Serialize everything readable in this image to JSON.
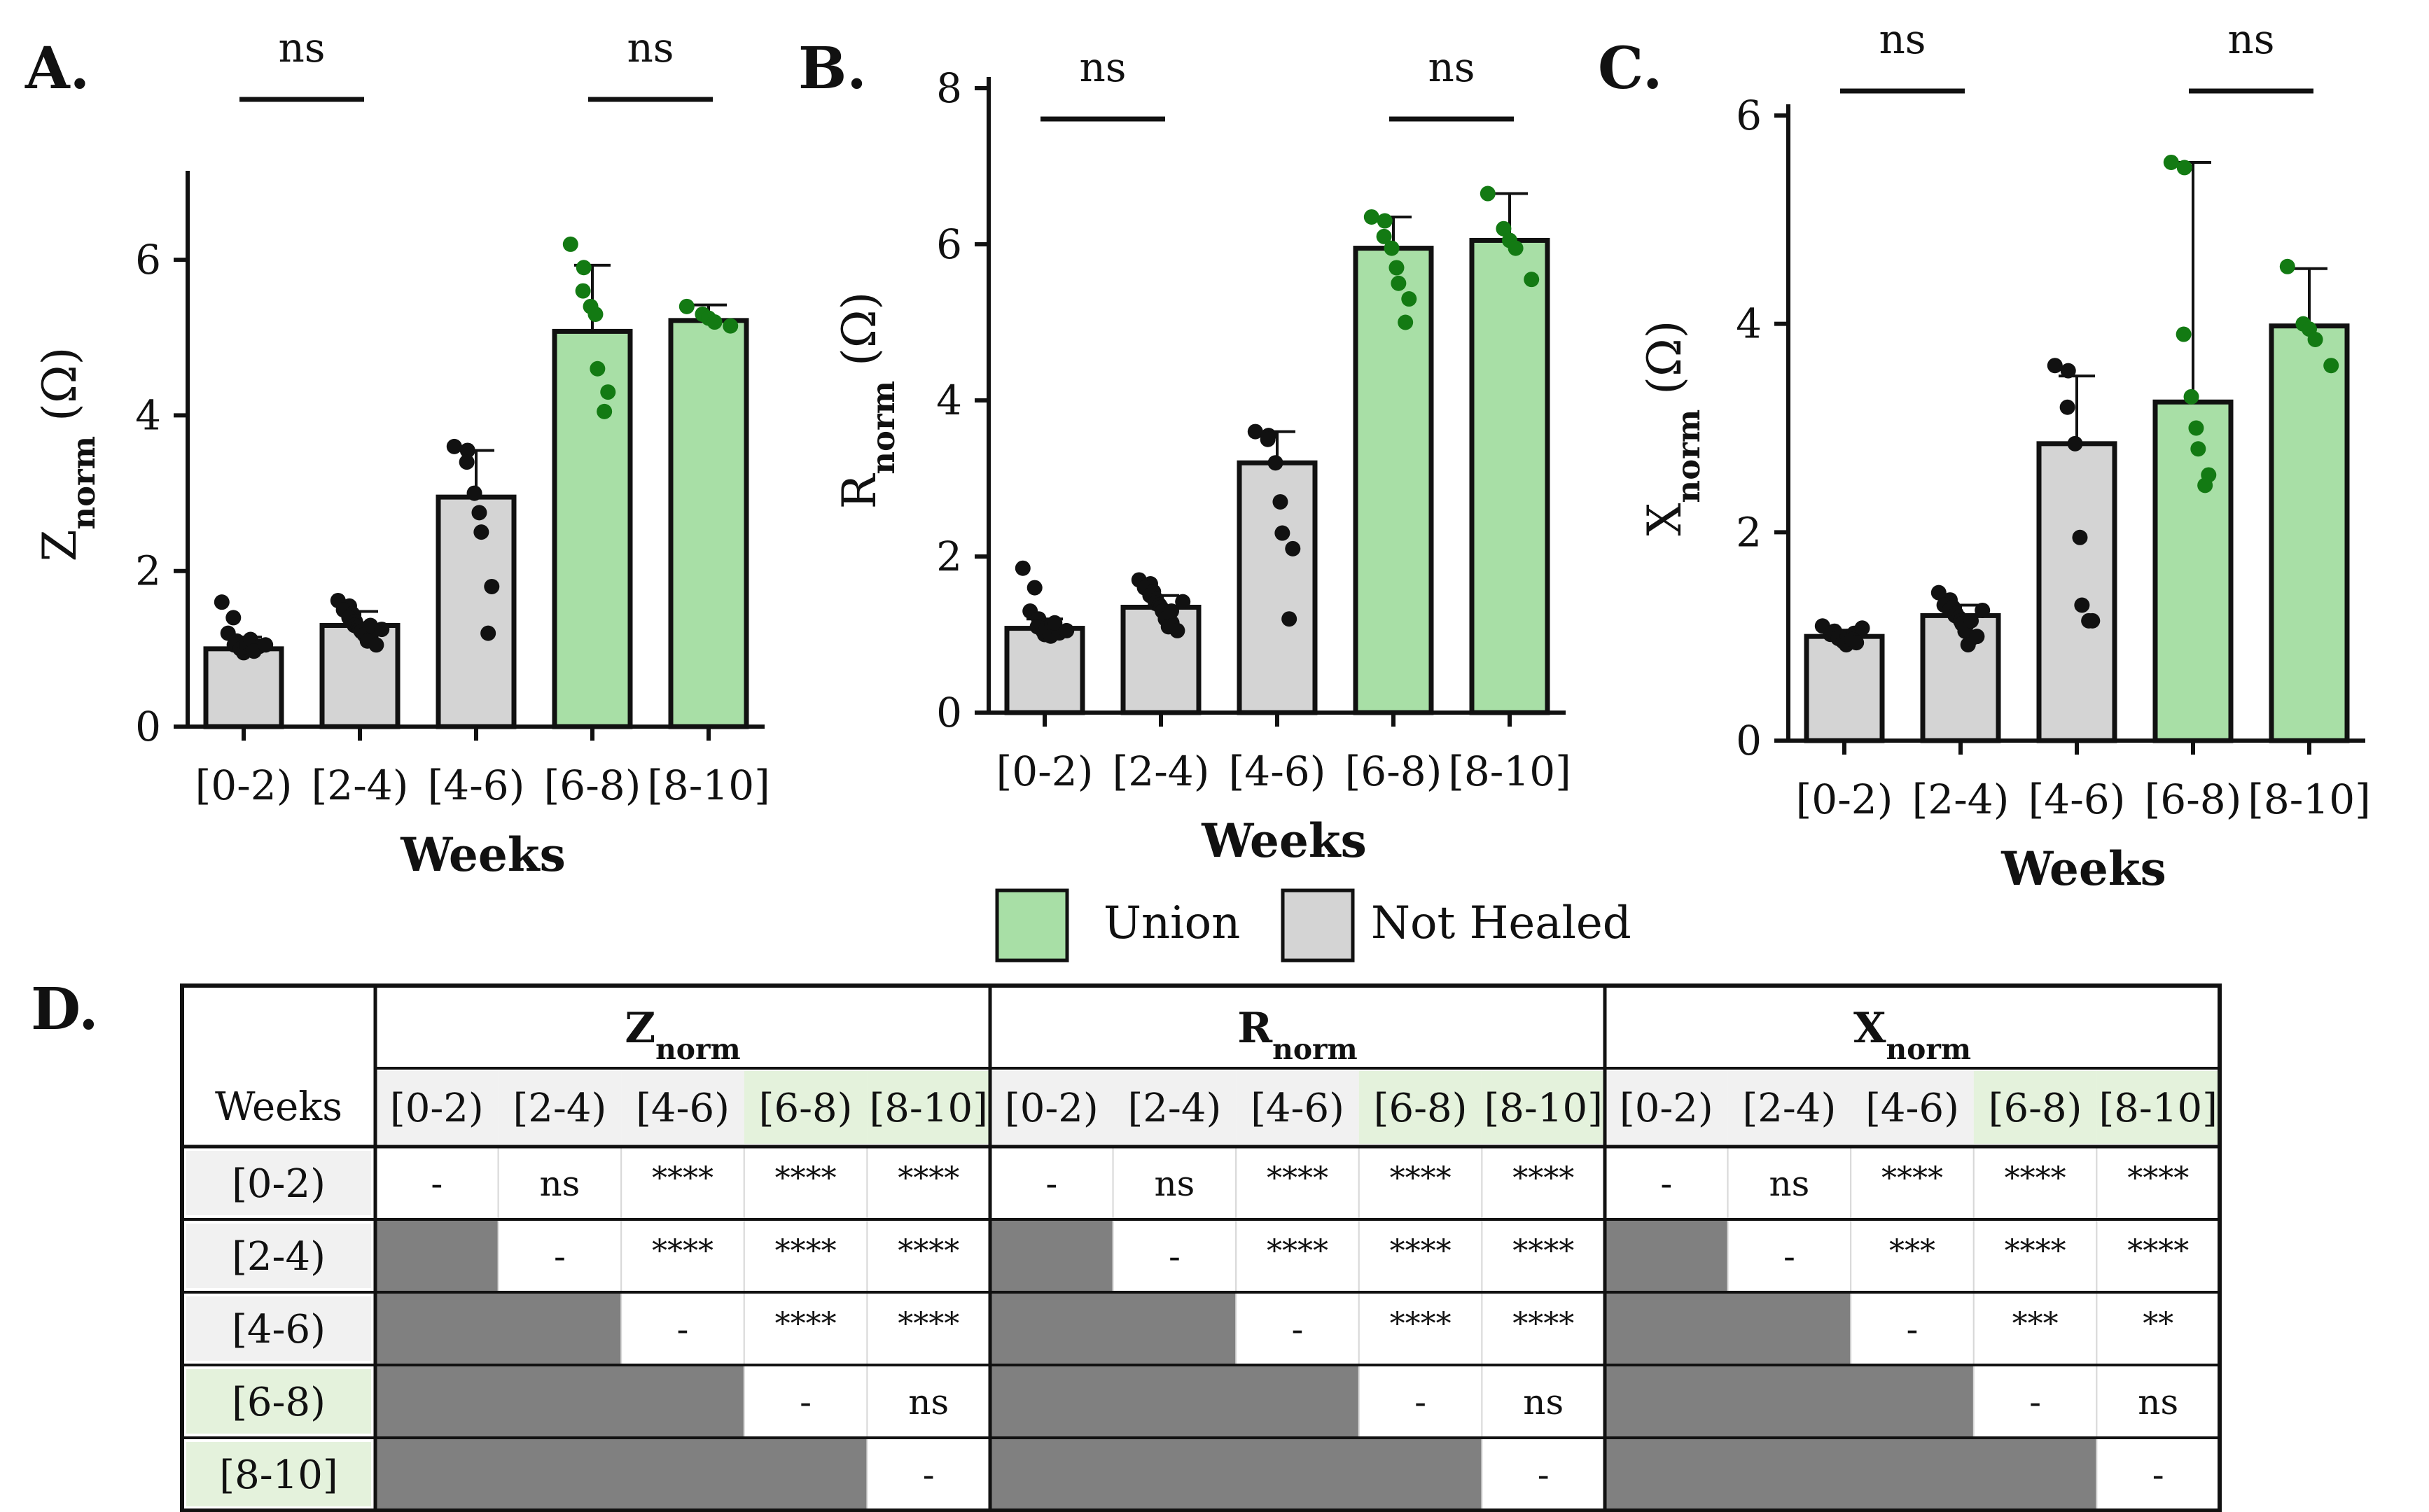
{
  "figure": {
    "categories": [
      "[0-2)",
      "[2-4)",
      "[4-6)",
      "[6-8)",
      "[8-10]"
    ],
    "colors": {
      "union": "#a8dfa6",
      "not_healed": "#d4d4d4",
      "point_union": "#137a13",
      "point_not_healed": "#111111",
      "shaded_cell": "#808080",
      "union_header_bg": "#e4f2dc",
      "row_header_bg": "#f1f1f1"
    },
    "legend": {
      "union_label": "Union",
      "not_healed_label": "Not Healed"
    },
    "table": {
      "panel_letter": "D.",
      "corner_label": "Weeks",
      "groups": [
        {
          "base": "Z",
          "sub": "norm"
        },
        {
          "base": "R",
          "sub": "norm"
        },
        {
          "base": "X",
          "sub": "norm"
        }
      ],
      "row_labels": [
        "[0-2)",
        "[2-4)",
        "[4-6)",
        "[6-8)",
        "[8-10]"
      ],
      "values": [
        [
          [
            "-",
            "ns",
            "****",
            "****",
            "****"
          ],
          [
            "",
            "-",
            "****",
            "****",
            "****"
          ],
          [
            "",
            "",
            "-",
            "****",
            "****"
          ],
          [
            "",
            "",
            "",
            "-",
            "ns"
          ],
          [
            "",
            "",
            "",
            "",
            "-"
          ]
        ],
        [
          [
            "-",
            "ns",
            "****",
            "****",
            "****"
          ],
          [
            "",
            "-",
            "****",
            "****",
            "****"
          ],
          [
            "",
            "",
            "-",
            "****",
            "****"
          ],
          [
            "",
            "",
            "",
            "-",
            "ns"
          ],
          [
            "",
            "",
            "",
            "",
            "-"
          ]
        ],
        [
          [
            "-",
            "ns",
            "****",
            "****",
            "****"
          ],
          [
            "",
            "-",
            "***",
            "****",
            "****"
          ],
          [
            "",
            "",
            "-",
            "***",
            "**"
          ],
          [
            "",
            "",
            "",
            "-",
            "ns"
          ],
          [
            "",
            "",
            "",
            "",
            "-"
          ]
        ]
      ]
    }
  },
  "chart_data": [
    {
      "type": "bar",
      "panel_letter": "A.",
      "categories": [
        "[0-2)",
        "[2-4)",
        "[4-6)",
        "[6-8)",
        "[8-10]"
      ],
      "values": [
        1.0,
        1.3,
        2.95,
        5.08,
        5.22
      ],
      "sd": [
        0.15,
        0.18,
        0.6,
        0.85,
        0.2
      ],
      "points": [
        [
          1.6,
          1.4,
          1.2,
          1.1,
          1.05,
          1.0,
          1.0,
          0.95,
          1.02,
          1.08,
          0.98,
          1.12,
          1.03,
          0.97,
          1.05
        ],
        [
          1.62,
          1.55,
          1.5,
          1.45,
          1.4,
          1.35,
          1.3,
          1.28,
          1.25,
          1.22,
          1.2,
          1.18,
          1.15,
          1.1,
          1.05,
          1.3,
          1.25
        ],
        [
          3.6,
          3.55,
          3.4,
          3.0,
          2.75,
          2.5,
          1.8,
          1.2
        ],
        [
          6.2,
          5.9,
          5.6,
          5.4,
          5.3,
          4.6,
          4.3,
          4.05
        ],
        [
          5.4,
          5.3,
          5.25,
          5.2,
          5.15
        ]
      ],
      "groups": [
        "not_healed",
        "not_healed",
        "not_healed",
        "union",
        "union"
      ],
      "ylim": [
        0,
        7
      ],
      "yticks": [
        0,
        2,
        4,
        6
      ],
      "ylabel": {
        "base": "Z",
        "sub": "norm",
        "unit": "(Ω)"
      },
      "xlabel": "Weeks",
      "comparisons": [
        {
          "from": "[0-2)",
          "to": "[2-4)",
          "label": "ns"
        },
        {
          "from": "[6-8)",
          "to": "[8-10]",
          "label": "ns"
        }
      ]
    },
    {
      "type": "bar",
      "panel_letter": "B.",
      "categories": [
        "[0-2)",
        "[2-4)",
        "[4-6)",
        "[6-8)",
        "[8-10]"
      ],
      "values": [
        1.08,
        1.35,
        3.2,
        5.95,
        6.05
      ],
      "sd": [
        0.12,
        0.15,
        0.4,
        0.4,
        0.6
      ],
      "points": [
        [
          1.85,
          1.6,
          1.3,
          1.2,
          1.1,
          1.05,
          1.0,
          1.08,
          1.12,
          0.98,
          1.02,
          1.15,
          1.05
        ],
        [
          1.7,
          1.65,
          1.6,
          1.55,
          1.5,
          1.45,
          1.4,
          1.38,
          1.35,
          1.3,
          1.25,
          1.2,
          1.15,
          1.1,
          1.05,
          1.3,
          1.42
        ],
        [
          3.6,
          3.55,
          3.5,
          3.2,
          2.7,
          2.3,
          2.1,
          1.2
        ],
        [
          6.35,
          6.3,
          6.1,
          5.95,
          5.7,
          5.5,
          5.3,
          5.0
        ],
        [
          6.65,
          6.2,
          6.05,
          5.95,
          5.55
        ]
      ],
      "groups": [
        "not_healed",
        "not_healed",
        "not_healed",
        "union",
        "union"
      ],
      "ylim": [
        0,
        8
      ],
      "yticks": [
        0,
        2,
        4,
        6,
        8
      ],
      "ylabel": {
        "base": "R",
        "sub": "norm",
        "unit": "(Ω)"
      },
      "xlabel": "Weeks",
      "comparisons": [
        {
          "from": "[0-2)",
          "to": "[2-4)",
          "label": "ns"
        },
        {
          "from": "[6-8)",
          "to": "[8-10]",
          "label": "ns"
        }
      ]
    },
    {
      "type": "bar",
      "panel_letter": "C.",
      "categories": [
        "[0-2)",
        "[2-4)",
        "[4-6)",
        "[6-8)",
        "[8-10]"
      ],
      "values": [
        1.0,
        1.2,
        2.85,
        3.25,
        3.98
      ],
      "sd": [
        0.06,
        0.1,
        0.65,
        2.3,
        0.55
      ],
      "points": [
        [
          1.1,
          1.05,
          1.02,
          1.0,
          0.98,
          0.95,
          0.92,
          1.0,
          1.03,
          0.97,
          1.08,
          0.94
        ],
        [
          1.42,
          1.35,
          1.3,
          1.28,
          1.25,
          1.22,
          1.2,
          1.18,
          1.15,
          1.12,
          1.1,
          1.05,
          0.98,
          0.92,
          1.0,
          1.15,
          1.25
        ],
        [
          3.6,
          3.55,
          3.2,
          2.85,
          1.95,
          1.3,
          1.15,
          1.15
        ],
        [
          5.55,
          5.5,
          3.9,
          3.3,
          3.0,
          2.8,
          2.55,
          2.45
        ],
        [
          4.55,
          4.0,
          3.95,
          3.85,
          3.6
        ]
      ],
      "groups": [
        "not_healed",
        "not_healed",
        "not_healed",
        "union",
        "union"
      ],
      "ylim": [
        0,
        6
      ],
      "yticks": [
        0,
        2,
        4,
        6
      ],
      "ylabel": {
        "base": "X",
        "sub": "norm",
        "unit": "(Ω)"
      },
      "xlabel": "Weeks",
      "comparisons": [
        {
          "from": "[0-2)",
          "to": "[2-4)",
          "label": "ns"
        },
        {
          "from": "[6-8)",
          "to": "[8-10]",
          "label": "ns"
        }
      ]
    }
  ]
}
